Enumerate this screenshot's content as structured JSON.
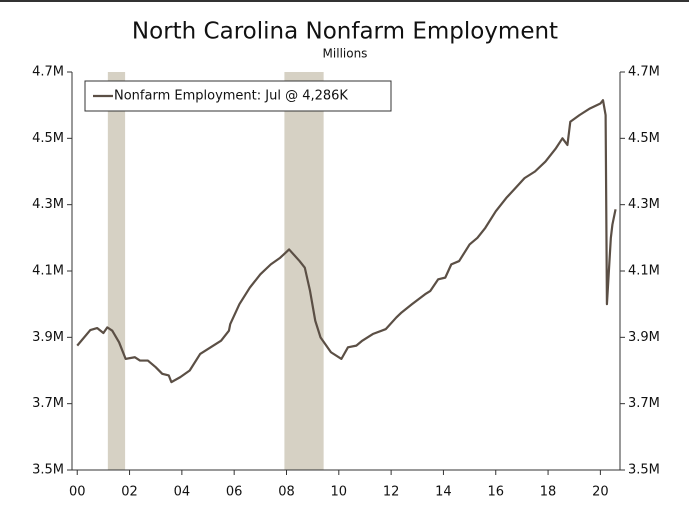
{
  "chart_data": {
    "type": "line",
    "title": "North Carolina Nonfarm Employment",
    "subtitle": "Millions",
    "x": [
      2000.0,
      2000.5,
      2000.76,
      2001.0,
      2001.15,
      2001.34,
      2001.6,
      2001.85,
      2002.2,
      2002.4,
      2002.7,
      2003.0,
      2003.25,
      2003.5,
      2003.6,
      2003.94,
      2004.3,
      2004.7,
      2005.1,
      2005.5,
      2005.8,
      2005.85,
      2006.2,
      2006.6,
      2007.0,
      2007.4,
      2007.76,
      2008.1,
      2008.5,
      2008.7,
      2008.9,
      2009.1,
      2009.3,
      2009.7,
      2010.1,
      2010.35,
      2010.67,
      2010.9,
      2011.3,
      2011.8,
      2012.2,
      2012.4,
      2012.8,
      2013.3,
      2013.5,
      2013.8,
      2014.07,
      2014.3,
      2014.6,
      2015.0,
      2015.3,
      2015.6,
      2016.0,
      2016.4,
      2016.75,
      2017.1,
      2017.5,
      2017.9,
      2018.3,
      2018.55,
      2018.74,
      2018.85,
      2019.2,
      2019.6,
      2020.0,
      2020.1,
      2020.2,
      2020.25,
      2020.4,
      2020.46,
      2020.58
    ],
    "series": [
      {
        "name": "Nonfarm Employment: Jul @ 4,286K",
        "color": "#5b4f45",
        "values": [
          3.875,
          3.922,
          3.928,
          3.913,
          3.93,
          3.92,
          3.885,
          3.835,
          3.84,
          3.83,
          3.83,
          3.81,
          3.79,
          3.785,
          3.765,
          3.78,
          3.8,
          3.85,
          3.87,
          3.89,
          3.92,
          3.94,
          4.0,
          4.05,
          4.09,
          4.12,
          4.14,
          4.165,
          4.13,
          4.11,
          4.04,
          3.95,
          3.9,
          3.855,
          3.835,
          3.87,
          3.875,
          3.89,
          3.91,
          3.925,
          3.96,
          3.975,
          4.0,
          4.03,
          4.04,
          4.075,
          4.08,
          4.12,
          4.13,
          4.18,
          4.2,
          4.23,
          4.28,
          4.32,
          4.35,
          4.38,
          4.4,
          4.43,
          4.47,
          4.5,
          4.48,
          4.55,
          4.57,
          4.59,
          4.605,
          4.615,
          4.57,
          4.0,
          4.2,
          4.24,
          4.286
        ]
      }
    ],
    "shaded_regions": [
      [
        2001.17,
        2001.83
      ],
      [
        2007.92,
        2009.42
      ]
    ],
    "shade_color": "#d6d1c4",
    "xlim": [
      1999.8,
      2020.75
    ],
    "xticks": [
      {
        "value": 2000,
        "label": "00"
      },
      {
        "value": 2002,
        "label": "02"
      },
      {
        "value": 2004,
        "label": "04"
      },
      {
        "value": 2006,
        "label": "06"
      },
      {
        "value": 2008,
        "label": "08"
      },
      {
        "value": 2010,
        "label": "10"
      },
      {
        "value": 2012,
        "label": "12"
      },
      {
        "value": 2014,
        "label": "14"
      },
      {
        "value": 2016,
        "label": "16"
      },
      {
        "value": 2018,
        "label": "18"
      },
      {
        "value": 2020,
        "label": "20"
      }
    ],
    "ylim": [
      3.5,
      4.7
    ],
    "yticks": [
      {
        "value": 3.5,
        "label": "3.5M"
      },
      {
        "value": 3.7,
        "label": "3.7M"
      },
      {
        "value": 3.9,
        "label": "3.9M"
      },
      {
        "value": 4.1,
        "label": "4.1M"
      },
      {
        "value": 4.3,
        "label": "4.3M"
      },
      {
        "value": 4.5,
        "label": "4.5M"
      },
      {
        "value": 4.7,
        "label": "4.7M"
      }
    ],
    "legend": "top-left"
  }
}
